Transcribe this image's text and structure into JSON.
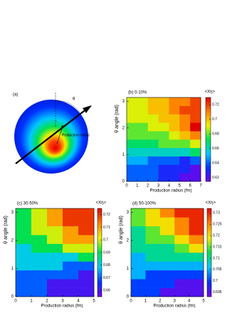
{
  "diagram": {
    "label": "(a)",
    "angle_label": "θ",
    "radius_label": "Production radius"
  },
  "chart_data": [
    {
      "type": "heatmap",
      "title": "(b) 0-10%",
      "x_label": "Production radius (fm)",
      "y_label": "θ angle (rad)",
      "colorbar_label": "<Xη>",
      "colormap": [
        "#7a00e6",
        "#0033ff",
        "#00c8ff",
        "#00e050",
        "#f0f000",
        "#ff8000",
        "#e00000"
      ],
      "xbins": [
        0,
        1,
        2,
        3,
        4,
        5,
        6,
        7
      ],
      "ybins": [
        0,
        0.31416,
        0.62832,
        0.94248,
        1.25664,
        1.5708,
        1.88496,
        2.19912,
        2.51327,
        2.82743,
        3.14159
      ],
      "xlim": [
        0,
        7
      ],
      "ylim": [
        0,
        3.14159
      ],
      "xticks": [
        0,
        1,
        2,
        3,
        4,
        5,
        6,
        7
      ],
      "yticks": [
        0,
        1,
        2,
        3
      ],
      "zlim": [
        0.615,
        0.73
      ],
      "zticks": [
        0.62,
        0.64,
        0.66,
        0.68,
        0.7,
        0.72
      ],
      "values": [
        [
          0.64,
          0.64,
          0.64,
          0.63,
          0.63,
          0.62,
          0.62
        ],
        [
          0.64,
          0.64,
          0.64,
          0.63,
          0.63,
          0.63,
          0.62
        ],
        [
          0.65,
          0.65,
          0.64,
          0.64,
          0.64,
          0.63,
          0.64
        ],
        [
          0.66,
          0.66,
          0.66,
          0.66,
          0.66,
          0.66,
          0.67
        ],
        [
          0.67,
          0.67,
          0.67,
          0.68,
          0.68,
          0.68,
          0.69
        ],
        [
          0.68,
          0.68,
          0.68,
          0.68,
          0.69,
          0.7,
          0.71
        ],
        [
          0.68,
          0.68,
          0.69,
          0.69,
          0.7,
          0.71,
          0.73
        ],
        [
          0.69,
          0.69,
          0.69,
          0.7,
          0.7,
          0.71,
          0.72
        ],
        [
          0.69,
          0.69,
          0.7,
          0.7,
          0.71,
          0.72,
          0.72
        ],
        [
          0.69,
          0.69,
          0.7,
          0.7,
          0.71,
          0.71,
          0.72
        ]
      ]
    },
    {
      "type": "heatmap",
      "title": "(c) 30-50%",
      "x_label": "Production radius (fm)",
      "y_label": "θ angle (rad)",
      "colorbar_label": "<Xη>",
      "colormap": [
        "#7a00e6",
        "#0033ff",
        "#00c8ff",
        "#00e050",
        "#f0f000",
        "#ff8000",
        "#e00000"
      ],
      "xbins": [
        0,
        1,
        2,
        3,
        4,
        5
      ],
      "ybins": [
        0,
        0.31416,
        0.62832,
        0.94248,
        1.25664,
        1.5708,
        1.88496,
        2.19912,
        2.51327,
        2.82743,
        3.14159
      ],
      "xlim": [
        0,
        5
      ],
      "ylim": [
        0,
        3.14159
      ],
      "xticks": [
        0,
        1,
        2,
        3,
        4,
        5
      ],
      "yticks": [
        0,
        1,
        2,
        3
      ],
      "zlim": [
        0.655,
        0.725
      ],
      "zticks": [
        0.66,
        0.67,
        0.68,
        0.69,
        0.7,
        0.71,
        0.72
      ],
      "values": [
        [
          0.67,
          0.67,
          0.66,
          0.66,
          0.66
        ],
        [
          0.67,
          0.67,
          0.66,
          0.66,
          0.66
        ],
        [
          0.67,
          0.67,
          0.67,
          0.67,
          0.66
        ],
        [
          0.68,
          0.68,
          0.68,
          0.67,
          0.67
        ],
        [
          0.68,
          0.68,
          0.68,
          0.68,
          0.69
        ],
        [
          0.68,
          0.69,
          0.69,
          0.7,
          0.7
        ],
        [
          0.69,
          0.69,
          0.7,
          0.71,
          0.71
        ],
        [
          0.69,
          0.7,
          0.7,
          0.71,
          0.72
        ],
        [
          0.69,
          0.7,
          0.71,
          0.72,
          0.72
        ],
        [
          0.69,
          0.7,
          0.71,
          0.72,
          0.72
        ]
      ]
    },
    {
      "type": "heatmap",
      "title": "(d) 50-100%",
      "x_label": "Production radius (fm)",
      "y_label": "θ angle (rad)",
      "colorbar_label": "<Xη>",
      "colormap": [
        "#7a00e6",
        "#0033ff",
        "#00c8ff",
        "#00e050",
        "#f0f000",
        "#ff8000",
        "#e00000"
      ],
      "xbins": [
        0,
        1,
        2,
        3,
        4,
        5
      ],
      "ybins": [
        0,
        0.31416,
        0.62832,
        0.94248,
        1.25664,
        1.5708,
        1.88496,
        2.19912,
        2.51327,
        2.82743,
        3.14159
      ],
      "xlim": [
        0,
        5
      ],
      "ylim": [
        0,
        3.14159
      ],
      "xticks": [
        0,
        1,
        2,
        3,
        4,
        5
      ],
      "yticks": [
        0,
        1,
        2,
        3
      ],
      "zlim": [
        0.693,
        0.732
      ],
      "zticks": [
        0.695,
        0.7,
        0.705,
        0.71,
        0.715,
        0.72,
        0.725,
        0.73
      ],
      "values": [
        [
          0.7,
          0.7,
          0.695,
          0.695,
          0.695
        ],
        [
          0.7,
          0.7,
          0.7,
          0.695,
          0.695
        ],
        [
          0.705,
          0.7,
          0.7,
          0.7,
          0.7
        ],
        [
          0.705,
          0.705,
          0.705,
          0.705,
          0.705
        ],
        [
          0.705,
          0.71,
          0.71,
          0.71,
          0.71
        ],
        [
          0.71,
          0.71,
          0.71,
          0.715,
          0.72
        ],
        [
          0.71,
          0.715,
          0.715,
          0.72,
          0.725
        ],
        [
          0.71,
          0.715,
          0.72,
          0.725,
          0.73
        ],
        [
          0.715,
          0.72,
          0.72,
          0.725,
          0.73
        ],
        [
          0.715,
          0.72,
          0.725,
          0.73,
          0.73
        ]
      ]
    }
  ]
}
